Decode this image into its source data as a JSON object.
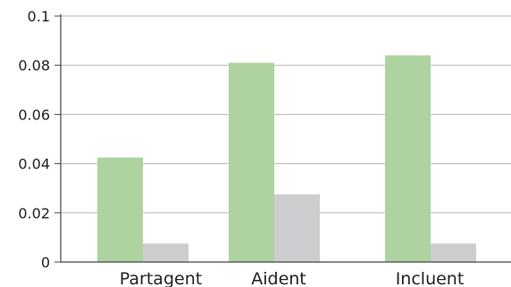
{
  "chart_data": {
    "type": "bar",
    "categories": [
      "Partagent",
      "Aident",
      "Incluent"
    ],
    "series": [
      {
        "values": [
          0.0425,
          0.081,
          0.084
        ],
        "color": "#aed3a1"
      },
      {
        "values": [
          0.0075,
          0.0275,
          0.0075
        ],
        "color": "#cdcdcf"
      }
    ],
    "ylim": [
      0,
      0.1
    ],
    "yticks": [
      0,
      0.02,
      0.04,
      0.06,
      0.08,
      0.1
    ],
    "ytick_labels": [
      "0",
      "0.02",
      "0.04",
      "0.06",
      "0.08",
      "0.1"
    ],
    "grid": true,
    "grid_color": "#b5b5b5",
    "axis_color": "#444444"
  }
}
